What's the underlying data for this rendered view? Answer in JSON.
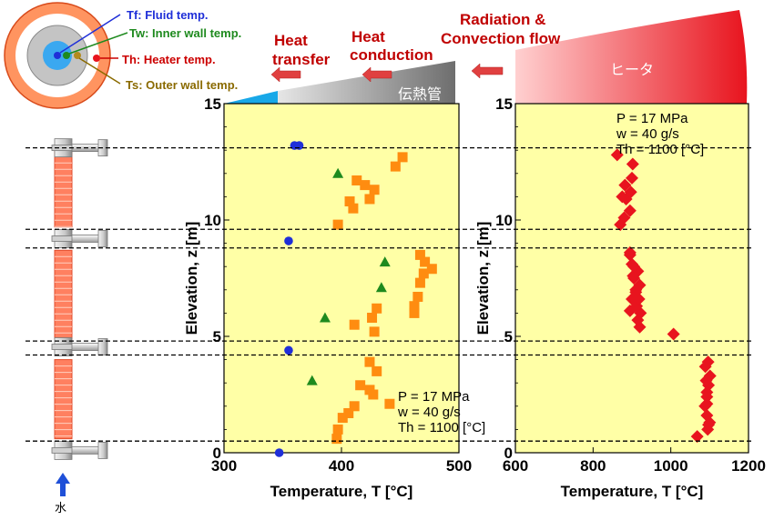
{
  "legend": {
    "tf": "Tf: Fluid temp.",
    "tw": "Tw: Inner wall temp.",
    "th": "Th: Heater temp.",
    "ts": "Ts: Outer wall temp."
  },
  "flow_labels": {
    "heat_transfer_1": "Heat",
    "heat_transfer_2": "transfer",
    "heat_conduction_1": "Heat",
    "heat_conduction_2": "conduction",
    "radiation_1": "Radiation &",
    "radiation_2": "Convection flow",
    "tube_label": "伝熱管",
    "heater_label": "ヒータ",
    "water_label": "水"
  },
  "colors": {
    "fluid": "#1f2fd8",
    "inner_wall": "#1e8a1e",
    "outer_wall": "#ff8c10",
    "heater": "#e8141e",
    "plot_bg": "#ffffa6",
    "title_red": "#c00000"
  },
  "chart_data": [
    {
      "type": "scatter",
      "xlabel": "Temperature, T [°C]",
      "ylabel": "Elevation, z [m]",
      "xlim": [
        300,
        500
      ],
      "ylim": [
        0,
        15
      ],
      "xticks": [
        "300",
        "400",
        "500"
      ],
      "yticks": [
        "0",
        "5",
        "10",
        "15"
      ],
      "grid": false,
      "annotation": [
        "P = 17 MPa",
        "w = 40 g/s",
        "Th = 1100 [°C]"
      ],
      "reference_elevations": [
        0.5,
        4.2,
        4.8,
        8.8,
        9.6,
        13.1
      ],
      "series": [
        {
          "key": "fluid",
          "marker": "circle",
          "x": [
            347,
            355,
            355,
            360,
            364
          ],
          "y": [
            0.0,
            4.4,
            9.1,
            13.2,
            13.2
          ]
        },
        {
          "key": "inner_wall",
          "marker": "triangle",
          "x": [
            375,
            386,
            434,
            437,
            397
          ],
          "y": [
            3.1,
            5.8,
            7.1,
            8.2,
            12.0
          ]
        },
        {
          "key": "outer_wall",
          "marker": "square",
          "x": [
            396,
            397,
            401,
            406,
            411,
            416,
            424,
            427,
            430,
            424,
            441,
            428,
            411,
            426,
            430,
            462,
            462,
            465,
            467,
            470,
            477,
            471,
            467,
            397,
            410,
            407,
            424,
            413,
            428,
            420,
            446,
            452
          ],
          "y": [
            0.6,
            1.0,
            1.5,
            1.7,
            2.0,
            2.9,
            2.7,
            2.5,
            3.5,
            3.9,
            2.1,
            5.2,
            5.5,
            5.8,
            6.2,
            6.0,
            6.3,
            6.7,
            7.3,
            7.7,
            7.9,
            8.2,
            8.5,
            9.8,
            10.5,
            10.8,
            10.9,
            11.7,
            11.3,
            11.5,
            12.3,
            12.7
          ]
        }
      ]
    },
    {
      "type": "scatter",
      "xlabel": "Temperature, T [°C]",
      "ylabel": "Elevation, z [m]",
      "xlim": [
        600,
        1200
      ],
      "ylim": [
        0,
        15
      ],
      "xticks": [
        "600",
        "800",
        "1000",
        "1200"
      ],
      "yticks": [
        "0",
        "5",
        "10",
        "15"
      ],
      "grid": false,
      "annotation": [
        "P = 17 MPa",
        "w = 40 g/s",
        "Th = 1100 [°C]"
      ],
      "reference_elevations": [
        0.5,
        4.2,
        4.8,
        8.8,
        9.6,
        13.1
      ],
      "series": [
        {
          "key": "heater",
          "marker": "diamond",
          "x": [
            1068,
            1095,
            1100,
            1093,
            1088,
            1093,
            1097,
            1101,
            1089,
            1096,
            1093,
            1091,
            1093,
            1097,
            1007,
            920,
            915,
            922,
            912,
            918,
            910,
            920,
            905,
            915,
            900,
            895,
            910,
            900,
            895,
            903,
            905,
            895,
            870,
            880,
            895,
            885,
            897,
            882,
            900,
            875,
            902,
            862
          ],
          "y": [
            0.7,
            1.0,
            1.3,
            1.6,
            2.0,
            2.4,
            2.9,
            3.3,
            3.7,
            3.9,
            2.1,
            3.1,
            2.6,
            1.2,
            5.1,
            5.4,
            5.7,
            6.0,
            6.3,
            6.6,
            6.9,
            7.2,
            7.5,
            7.8,
            8.1,
            8.5,
            7.0,
            6.6,
            6.1,
            7.6,
            8.0,
            8.6,
            9.8,
            10.1,
            10.4,
            10.9,
            11.2,
            11.5,
            11.8,
            11.0,
            12.4,
            12.8
          ]
        }
      ]
    }
  ]
}
